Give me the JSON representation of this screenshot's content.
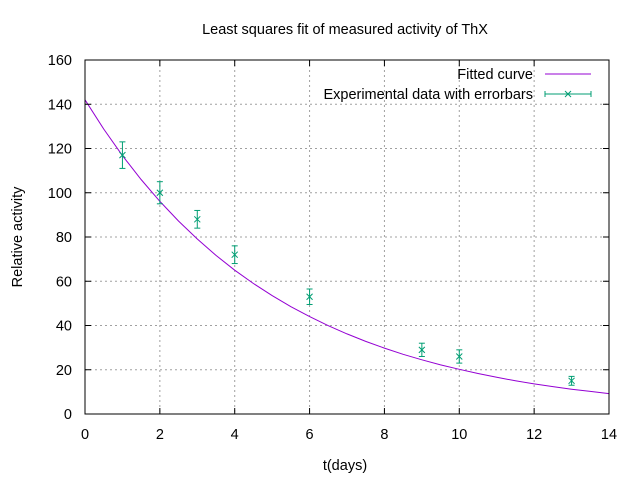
{
  "chart_data": {
    "type": "line",
    "title": "Least squares fit of measured activity of ThX",
    "xlabel": "t(days)",
    "ylabel": "Relative activity",
    "xlim": [
      0,
      14
    ],
    "ylim": [
      0,
      160
    ],
    "x_ticks": [
      0,
      2,
      4,
      6,
      8,
      10,
      12,
      14
    ],
    "y_ticks": [
      0,
      20,
      40,
      60,
      80,
      100,
      120,
      140,
      160
    ],
    "grid": true,
    "legend_position": "top-right",
    "series": [
      {
        "name": "Fitted curve",
        "kind": "line",
        "color": "#9400d3",
        "x": [
          0,
          0.5,
          1,
          1.5,
          2,
          2.5,
          3,
          3.5,
          4,
          4.5,
          5,
          5.5,
          6,
          6.5,
          7,
          7.5,
          8,
          8.5,
          9,
          9.5,
          10,
          10.5,
          11,
          11.5,
          12,
          12.5,
          13,
          13.5,
          14
        ],
        "y": [
          142,
          128.8,
          116.8,
          106.0,
          96.1,
          87.2,
          79.1,
          71.7,
          65.0,
          59.0,
          53.5,
          48.5,
          44.0,
          39.9,
          36.2,
          32.8,
          29.8,
          27.0,
          24.5,
          22.2,
          20.2,
          18.3,
          16.6,
          15.0,
          13.6,
          12.4,
          11.2,
          10.2,
          9.2
        ]
      },
      {
        "name": "Experimental data with errorbars",
        "kind": "errorbars",
        "color": "#009e73",
        "x": [
          1,
          2,
          3,
          4,
          6,
          9,
          10,
          13
        ],
        "y": [
          117,
          100,
          88,
          72,
          53,
          29,
          26,
          15
        ],
        "y_error": [
          6,
          5,
          4,
          4,
          3.5,
          3,
          3,
          2
        ]
      }
    ]
  }
}
